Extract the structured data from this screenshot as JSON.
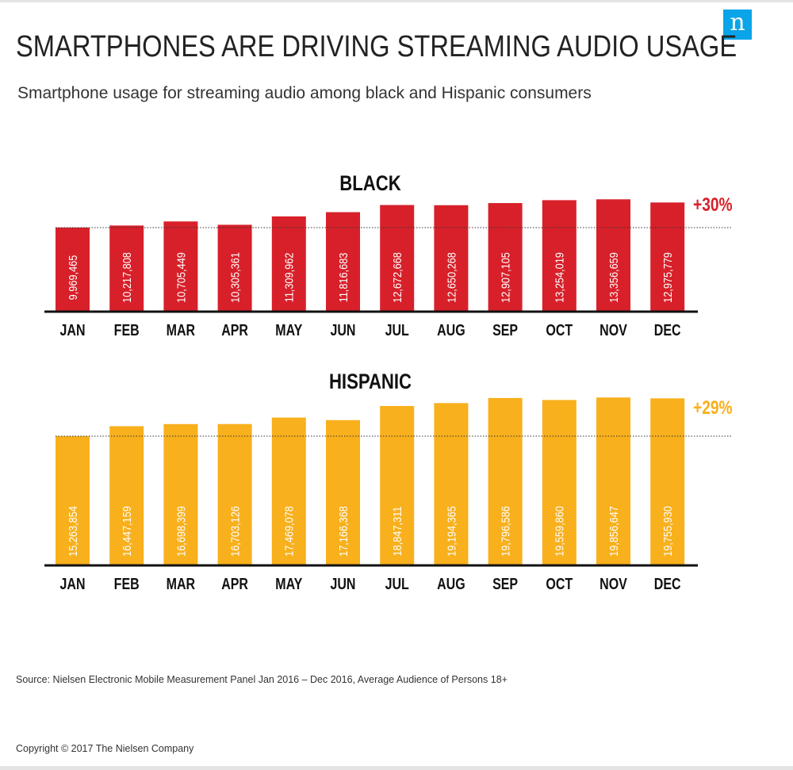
{
  "logo_glyph": "n",
  "title": "SMARTPHONES ARE DRIVING STREAMING AUDIO USAGE",
  "subtitle": "Smartphone usage for streaming audio among black and Hispanic consumers",
  "source": "Source: Nielsen Electronic Mobile Measurement Panel Jan 2016 – Dec 2016, Average Audience of Persons 18+",
  "copyright": "Copyright © 2017 The Nielsen Company",
  "colors": {
    "black_series": "#d8202a",
    "hispanic_series": "#f8b01c",
    "logo": "#0aa4e8"
  },
  "chart_data": [
    {
      "type": "bar",
      "title": "BLACK",
      "categories": [
        "JAN",
        "FEB",
        "MAR",
        "APR",
        "MAY",
        "JUN",
        "JUL",
        "AUG",
        "SEP",
        "OCT",
        "NOV",
        "DEC"
      ],
      "values": [
        9969465,
        10217808,
        10705449,
        10305361,
        11309962,
        11816683,
        12672668,
        12650268,
        12907105,
        13254019,
        13356659,
        12975779
      ],
      "labels": [
        "9,969,465",
        "10,217,808",
        "10,705,449",
        "10,305,361",
        "11,309,962",
        "11,816,683",
        "12,672,668",
        "12,650,268",
        "12,907,105",
        "13,254,019",
        "13,356,659",
        "12,975,779"
      ],
      "change_label": "+30%",
      "reference_line": "JAN level (dotted)",
      "color": "#d8202a"
    },
    {
      "type": "bar",
      "title": "HISPANIC",
      "categories": [
        "JAN",
        "FEB",
        "MAR",
        "APR",
        "MAY",
        "JUN",
        "JUL",
        "AUG",
        "SEP",
        "OCT",
        "NOV",
        "DEC"
      ],
      "values": [
        15263854,
        16447159,
        16698399,
        16703126,
        17469078,
        17166368,
        18847311,
        19194365,
        19796586,
        19559860,
        19856647,
        19755930
      ],
      "labels": [
        "15,263,854",
        "16,447,159",
        "16,698,399",
        "16,703,126",
        "17,469,078",
        "17,166,368",
        "18,847,311",
        "19,194,365",
        "19,796,586",
        "19,559,860",
        "19,856,647",
        "19,755,930"
      ],
      "change_label": "+29%",
      "reference_line": "JAN level (dotted)",
      "color": "#f8b01c"
    }
  ]
}
